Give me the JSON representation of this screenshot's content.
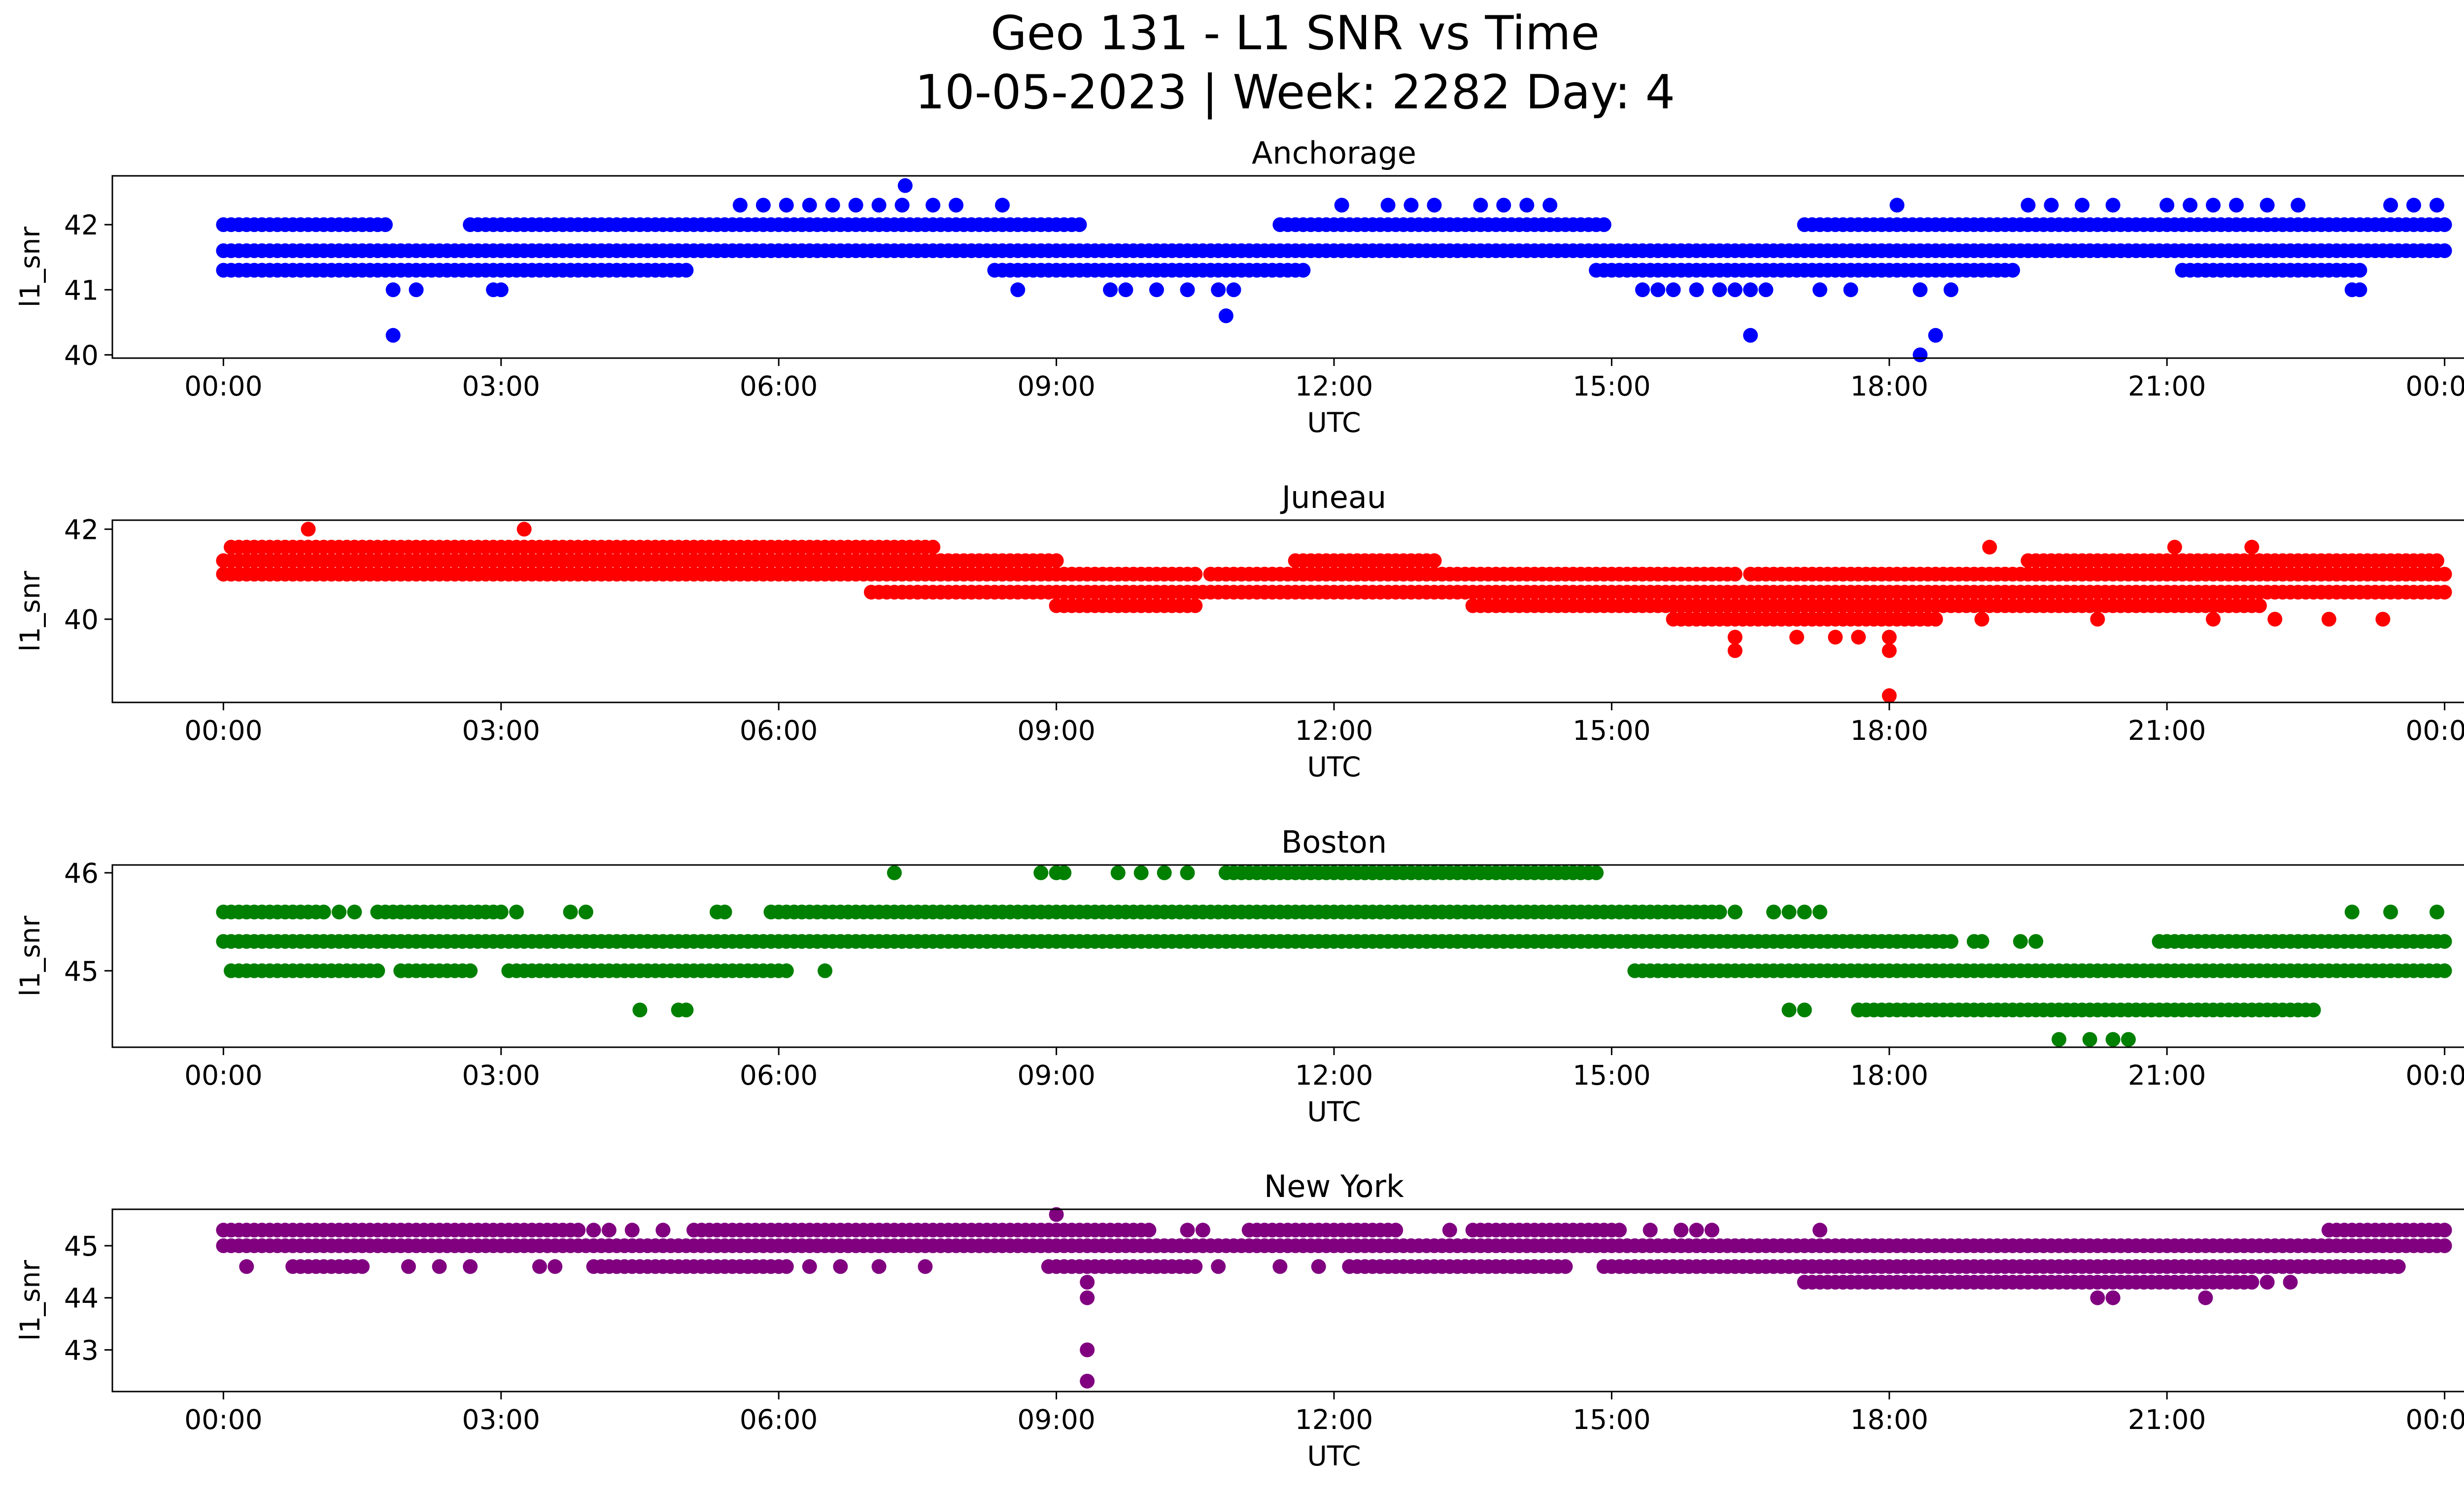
{
  "figure": {
    "title_line1": "Geo 131 - L1 SNR vs Time",
    "title_line2": "10-05-2023 | Week: 2282 Day: 4"
  },
  "chart_data": [
    {
      "type": "scatter",
      "title": "Anchorage",
      "xlabel": "UTC",
      "ylabel": "l1_snr",
      "color": "#0000ff",
      "xlim": [
        "00:00",
        "24:00"
      ],
      "ylim": [
        39.95,
        42.75
      ],
      "x_ticks": [
        "00:00",
        "03:00",
        "06:00",
        "09:00",
        "12:00",
        "15:00",
        "18:00",
        "21:00",
        "00:00"
      ],
      "y_ticks": [
        "40",
        "41",
        "42"
      ],
      "bands": [
        {
          "y": 41.6,
          "ranges": [
            [
              "00:00",
              "24:00"
            ]
          ]
        },
        {
          "y": 42.0,
          "ranges": [
            [
              "00:00",
              "01:45"
            ],
            [
              "02:40",
              "09:15"
            ],
            [
              "11:25",
              "14:55"
            ],
            [
              "17:05",
              "24:00"
            ]
          ]
        },
        {
          "y": 41.3,
          "ranges": [
            [
              "00:00",
              "05:00"
            ],
            [
              "08:20",
              "11:40"
            ],
            [
              "14:50",
              "19:20"
            ],
            [
              "21:10",
              "23:05"
            ]
          ]
        }
      ],
      "points": [
        {
          "x": "05:35",
          "y": 42.3
        },
        {
          "x": "05:50",
          "y": 42.3
        },
        {
          "x": "06:05",
          "y": 42.3
        },
        {
          "x": "06:20",
          "y": 42.3
        },
        {
          "x": "06:35",
          "y": 42.3
        },
        {
          "x": "06:50",
          "y": 42.3
        },
        {
          "x": "07:05",
          "y": 42.3
        },
        {
          "x": "07:20",
          "y": 42.3
        },
        {
          "x": "07:22",
          "y": 42.6
        },
        {
          "x": "07:40",
          "y": 42.3
        },
        {
          "x": "07:55",
          "y": 42.3
        },
        {
          "x": "08:25",
          "y": 42.3
        },
        {
          "x": "12:05",
          "y": 42.3
        },
        {
          "x": "12:35",
          "y": 42.3
        },
        {
          "x": "12:50",
          "y": 42.3
        },
        {
          "x": "13:05",
          "y": 42.3
        },
        {
          "x": "13:35",
          "y": 42.3
        },
        {
          "x": "13:50",
          "y": 42.3
        },
        {
          "x": "14:05",
          "y": 42.3
        },
        {
          "x": "14:20",
          "y": 42.3
        },
        {
          "x": "18:05",
          "y": 42.3
        },
        {
          "x": "19:30",
          "y": 42.3
        },
        {
          "x": "19:45",
          "y": 42.3
        },
        {
          "x": "20:05",
          "y": 42.3
        },
        {
          "x": "20:25",
          "y": 42.3
        },
        {
          "x": "21:00",
          "y": 42.3
        },
        {
          "x": "21:15",
          "y": 42.3
        },
        {
          "x": "21:30",
          "y": 42.3
        },
        {
          "x": "21:45",
          "y": 42.3
        },
        {
          "x": "22:05",
          "y": 42.3
        },
        {
          "x": "22:25",
          "y": 42.3
        },
        {
          "x": "23:25",
          "y": 42.3
        },
        {
          "x": "23:40",
          "y": 42.3
        },
        {
          "x": "23:55",
          "y": 42.3
        },
        {
          "x": "01:50",
          "y": 41.0
        },
        {
          "x": "02:05",
          "y": 41.0
        },
        {
          "x": "02:55",
          "y": 41.0
        },
        {
          "x": "03:00",
          "y": 41.0
        },
        {
          "x": "08:35",
          "y": 41.0
        },
        {
          "x": "09:35",
          "y": 41.0
        },
        {
          "x": "09:45",
          "y": 41.0
        },
        {
          "x": "10:05",
          "y": 41.0
        },
        {
          "x": "10:25",
          "y": 41.0
        },
        {
          "x": "10:45",
          "y": 41.0
        },
        {
          "x": "10:55",
          "y": 41.0
        },
        {
          "x": "15:20",
          "y": 41.0
        },
        {
          "x": "15:30",
          "y": 41.0
        },
        {
          "x": "15:40",
          "y": 41.0
        },
        {
          "x": "15:55",
          "y": 41.0
        },
        {
          "x": "16:10",
          "y": 41.0
        },
        {
          "x": "16:20",
          "y": 41.0
        },
        {
          "x": "16:30",
          "y": 41.0
        },
        {
          "x": "16:40",
          "y": 41.0
        },
        {
          "x": "17:15",
          "y": 41.0
        },
        {
          "x": "17:35",
          "y": 41.0
        },
        {
          "x": "18:20",
          "y": 41.0
        },
        {
          "x": "18:40",
          "y": 41.0
        },
        {
          "x": "23:00",
          "y": 41.0
        },
        {
          "x": "23:05",
          "y": 41.0
        },
        {
          "x": "01:50",
          "y": 40.3
        },
        {
          "x": "10:50",
          "y": 40.6
        },
        {
          "x": "16:30",
          "y": 40.3
        },
        {
          "x": "18:20",
          "y": 40.0
        },
        {
          "x": "18:30",
          "y": 40.3
        }
      ]
    },
    {
      "type": "scatter",
      "title": "Juneau",
      "xlabel": "UTC",
      "ylabel": "l1_snr",
      "color": "#ff0000",
      "xlim": [
        "00:00",
        "24:00"
      ],
      "ylim": [
        38.15,
        42.2
      ],
      "x_ticks": [
        "00:00",
        "03:00",
        "06:00",
        "09:00",
        "12:00",
        "15:00",
        "18:00",
        "21:00",
        "00:00"
      ],
      "y_ticks": [
        "40",
        "42"
      ],
      "bands": [
        {
          "y": 41.6,
          "ranges": [
            [
              "00:05",
              "07:40"
            ]
          ]
        },
        {
          "y": 41.3,
          "ranges": [
            [
              "00:00",
              "09:00"
            ],
            [
              "11:35",
              "13:05"
            ],
            [
              "19:30",
              "23:55"
            ]
          ]
        },
        {
          "y": 41.0,
          "ranges": [
            [
              "00:00",
              "10:30"
            ],
            [
              "10:40",
              "16:20"
            ],
            [
              "16:30",
              "24:00"
            ]
          ]
        },
        {
          "y": 40.6,
          "ranges": [
            [
              "07:00",
              "24:00"
            ]
          ]
        },
        {
          "y": 40.3,
          "ranges": [
            [
              "09:00",
              "10:30"
            ],
            [
              "13:30",
              "22:00"
            ]
          ]
        },
        {
          "y": 40.0,
          "ranges": [
            [
              "15:40",
              "18:30"
            ]
          ]
        }
      ],
      "points": [
        {
          "x": "00:55",
          "y": 42.0
        },
        {
          "x": "03:15",
          "y": 42.0
        },
        {
          "x": "19:05",
          "y": 41.6
        },
        {
          "x": "21:05",
          "y": 41.6
        },
        {
          "x": "21:55",
          "y": 41.6
        },
        {
          "x": "07:20",
          "y": 40.6
        },
        {
          "x": "07:30",
          "y": 40.6
        },
        {
          "x": "08:05",
          "y": 40.6
        },
        {
          "x": "16:20",
          "y": 39.6
        },
        {
          "x": "16:20",
          "y": 39.3
        },
        {
          "x": "17:00",
          "y": 39.6
        },
        {
          "x": "17:25",
          "y": 39.6
        },
        {
          "x": "17:40",
          "y": 39.6
        },
        {
          "x": "18:00",
          "y": 39.6
        },
        {
          "x": "18:00",
          "y": 39.3
        },
        {
          "x": "18:00",
          "y": 38.3
        },
        {
          "x": "18:30",
          "y": 40.0
        },
        {
          "x": "19:00",
          "y": 40.0
        },
        {
          "x": "20:15",
          "y": 40.0
        },
        {
          "x": "21:30",
          "y": 40.0
        },
        {
          "x": "22:10",
          "y": 40.0
        },
        {
          "x": "22:45",
          "y": 40.0
        },
        {
          "x": "23:20",
          "y": 40.0
        }
      ]
    },
    {
      "type": "scatter",
      "title": "Boston",
      "xlabel": "UTC",
      "ylabel": "l1_snr",
      "color": "#008000",
      "xlim": [
        "00:00",
        "24:00"
      ],
      "ylim": [
        44.22,
        46.08
      ],
      "x_ticks": [
        "00:00",
        "03:00",
        "06:00",
        "09:00",
        "12:00",
        "15:00",
        "18:00",
        "21:00",
        "00:00"
      ],
      "y_ticks": [
        "45",
        "46"
      ],
      "bands": [
        {
          "y": 45.6,
          "ranges": [
            [
              "00:00",
              "01:05"
            ],
            [
              "01:40",
              "03:00"
            ],
            [
              "05:55",
              "16:10"
            ]
          ]
        },
        {
          "y": 45.3,
          "ranges": [
            [
              "00:00",
              "18:40"
            ],
            [
              "20:55",
              "24:00"
            ]
          ]
        },
        {
          "y": 45.0,
          "ranges": [
            [
              "00:05",
              "01:40"
            ],
            [
              "01:55",
              "02:40"
            ],
            [
              "03:05",
              "06:05"
            ],
            [
              "15:15",
              "24:00"
            ]
          ]
        },
        {
          "y": 46.0,
          "ranges": [
            [
              "10:50",
              "12:30"
            ],
            [
              "12:05",
              "14:50"
            ]
          ]
        },
        {
          "y": 44.6,
          "ranges": [
            [
              "17:40",
              "22:30"
            ]
          ]
        }
      ],
      "points": [
        {
          "x": "01:15",
          "y": 45.6
        },
        {
          "x": "01:25",
          "y": 45.6
        },
        {
          "x": "03:10",
          "y": 45.6
        },
        {
          "x": "03:45",
          "y": 45.6
        },
        {
          "x": "03:55",
          "y": 45.6
        },
        {
          "x": "05:20",
          "y": 45.6
        },
        {
          "x": "05:25",
          "y": 45.6
        },
        {
          "x": "16:20",
          "y": 45.6
        },
        {
          "x": "16:45",
          "y": 45.6
        },
        {
          "x": "16:55",
          "y": 45.6
        },
        {
          "x": "17:05",
          "y": 45.6
        },
        {
          "x": "17:15",
          "y": 45.6
        },
        {
          "x": "23:00",
          "y": 45.6
        },
        {
          "x": "23:25",
          "y": 45.6
        },
        {
          "x": "23:55",
          "y": 45.6
        },
        {
          "x": "18:55",
          "y": 45.3
        },
        {
          "x": "19:00",
          "y": 45.3
        },
        {
          "x": "19:25",
          "y": 45.3
        },
        {
          "x": "19:35",
          "y": 45.3
        },
        {
          "x": "06:30",
          "y": 45.0
        },
        {
          "x": "04:30",
          "y": 44.6
        },
        {
          "x": "04:55",
          "y": 44.6
        },
        {
          "x": "05:00",
          "y": 44.6
        },
        {
          "x": "16:55",
          "y": 44.6
        },
        {
          "x": "17:05",
          "y": 44.6
        },
        {
          "x": "17:40",
          "y": 44.6
        },
        {
          "x": "22:35",
          "y": 44.6
        },
        {
          "x": "07:15",
          "y": 46.0
        },
        {
          "x": "08:50",
          "y": 46.0
        },
        {
          "x": "09:00",
          "y": 46.0
        },
        {
          "x": "09:05",
          "y": 46.0
        },
        {
          "x": "09:40",
          "y": 46.0
        },
        {
          "x": "09:55",
          "y": 46.0
        },
        {
          "x": "10:10",
          "y": 46.0
        },
        {
          "x": "10:25",
          "y": 46.0
        },
        {
          "x": "19:50",
          "y": 44.3
        },
        {
          "x": "20:10",
          "y": 44.3
        },
        {
          "x": "20:25",
          "y": 44.3
        },
        {
          "x": "20:35",
          "y": 44.3
        }
      ]
    },
    {
      "type": "scatter",
      "title": "New York",
      "xlabel": "UTC",
      "ylabel": "l1_snr",
      "color": "#800080",
      "xlim": [
        "00:00",
        "24:00"
      ],
      "ylim": [
        42.2,
        45.7
      ],
      "x_ticks": [
        "00:00",
        "03:00",
        "06:00",
        "09:00",
        "12:00",
        "15:00",
        "18:00",
        "21:00",
        "00:00"
      ],
      "y_ticks": [
        "43",
        "44",
        "45"
      ],
      "bands": [
        {
          "y": 45.3,
          "ranges": [
            [
              "00:00",
              "03:50"
            ],
            [
              "05:05",
              "10:00"
            ],
            [
              "11:05",
              "12:40"
            ],
            [
              "13:30",
              "15:05"
            ],
            [
              "22:45",
              "24:00"
            ]
          ]
        },
        {
          "y": 45.0,
          "ranges": [
            [
              "00:00",
              "16:00"
            ],
            [
              "16:00",
              "24:00"
            ]
          ]
        },
        {
          "y": 44.6,
          "ranges": [
            [
              "00:45",
              "01:30"
            ],
            [
              "04:00",
              "06:05"
            ],
            [
              "08:55",
              "10:30"
            ],
            [
              "12:10",
              "14:30"
            ],
            [
              "14:55",
              "23:30"
            ]
          ]
        },
        {
          "y": 44.3,
          "ranges": [
            [
              "17:05",
              "21:55"
            ]
          ]
        }
      ],
      "points": [
        {
          "x": "00:15",
          "y": 44.6
        },
        {
          "x": "02:00",
          "y": 44.6
        },
        {
          "x": "02:20",
          "y": 44.6
        },
        {
          "x": "02:40",
          "y": 44.6
        },
        {
          "x": "03:25",
          "y": 44.6
        },
        {
          "x": "03:35",
          "y": 44.6
        },
        {
          "x": "06:20",
          "y": 44.6
        },
        {
          "x": "06:40",
          "y": 44.6
        },
        {
          "x": "07:05",
          "y": 44.6
        },
        {
          "x": "07:35",
          "y": 44.6
        },
        {
          "x": "10:45",
          "y": 44.6
        },
        {
          "x": "11:25",
          "y": 44.6
        },
        {
          "x": "11:50",
          "y": 44.6
        },
        {
          "x": "04:00",
          "y": 45.3
        },
        {
          "x": "04:10",
          "y": 45.3
        },
        {
          "x": "04:25",
          "y": 45.3
        },
        {
          "x": "04:45",
          "y": 45.3
        },
        {
          "x": "10:25",
          "y": 45.3
        },
        {
          "x": "10:35",
          "y": 45.3
        },
        {
          "x": "13:15",
          "y": 45.3
        },
        {
          "x": "15:25",
          "y": 45.3
        },
        {
          "x": "15:45",
          "y": 45.3
        },
        {
          "x": "15:55",
          "y": 45.3
        },
        {
          "x": "16:05",
          "y": 45.3
        },
        {
          "x": "17:15",
          "y": 45.3
        },
        {
          "x": "09:00",
          "y": 45.6
        },
        {
          "x": "09:20",
          "y": 44.3
        },
        {
          "x": "09:20",
          "y": 44.0
        },
        {
          "x": "09:20",
          "y": 43.0
        },
        {
          "x": "09:20",
          "y": 42.4
        },
        {
          "x": "20:15",
          "y": 44.0
        },
        {
          "x": "20:25",
          "y": 44.0
        },
        {
          "x": "21:25",
          "y": 44.0
        },
        {
          "x": "22:05",
          "y": 44.3
        },
        {
          "x": "22:20",
          "y": 44.3
        }
      ]
    }
  ]
}
